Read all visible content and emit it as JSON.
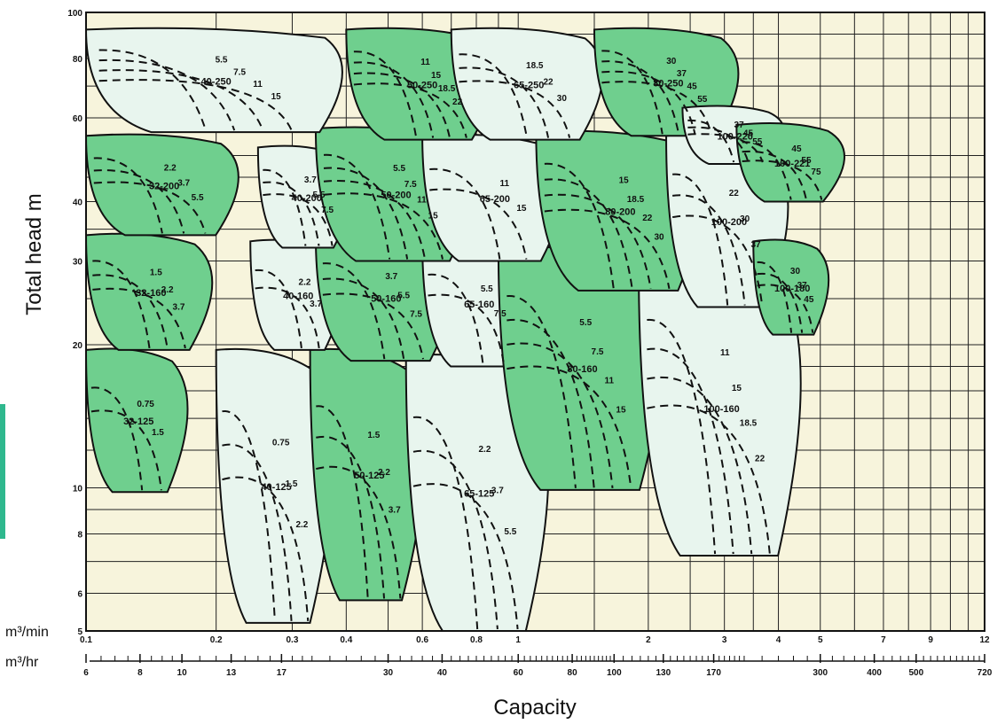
{
  "accent_colors": {
    "light_zone": "#e8f5ee",
    "dark_zone": "#6fcf8e",
    "plot_bg": "#f7f4dc",
    "side_bar": "#2fb88e"
  },
  "chart_data": {
    "type": "area",
    "xlabel": "Capacity",
    "ylabel": "Total head m",
    "x_scale": "log",
    "y_scale": "log",
    "xlim_m3min": [
      0.1,
      12
    ],
    "ylim_m": [
      5,
      100
    ],
    "grid": true,
    "y_ticks": [
      "5",
      "6",
      "8",
      "10",
      "20",
      "30",
      "40",
      "60",
      "80",
      "100"
    ],
    "x_ticks_m3min": [
      "0.1",
      "0.2",
      "0.3",
      "0.4",
      "0.6",
      "0.8",
      "1",
      "2",
      "3",
      "4",
      "5",
      "7",
      "9",
      "12"
    ],
    "x_ticks_m3hr": [
      "6",
      "8",
      "10",
      "13",
      "17",
      "30",
      "40",
      "60",
      "80",
      "100",
      "130",
      "170",
      "300",
      "400",
      "500",
      "720"
    ],
    "x_unit_min": "m³/min",
    "x_unit_hr": "m³/hr",
    "zones": [
      {
        "model": "32-125",
        "fill": "dark",
        "q": [
          0.1,
          0.175
        ],
        "h": [
          9.8,
          19.5
        ],
        "motors_kw": [
          "0.75",
          "1.5"
        ]
      },
      {
        "model": "40-125",
        "fill": "light",
        "q": [
          0.2,
          0.38
        ],
        "h": [
          5.2,
          19.5
        ],
        "motors_kw": [
          "0.75",
          "1.5",
          "2.2"
        ]
      },
      {
        "model": "50-125",
        "fill": "dark",
        "q": [
          0.33,
          0.62
        ],
        "h": [
          5.8,
          19.5
        ],
        "motors_kw": [
          "1.5",
          "2.2",
          "3.7"
        ]
      },
      {
        "model": "65-125",
        "fill": "light",
        "q": [
          0.55,
          1.2
        ],
        "h": [
          5,
          19
        ],
        "motors_kw": [
          "2.2",
          "3.7",
          "5.5"
        ]
      },
      {
        "model": "32-160",
        "fill": "dark",
        "q": [
          0.1,
          0.2
        ],
        "h": [
          19.5,
          34
        ],
        "motors_kw": [
          "1.5",
          "2.2",
          "3.7"
        ]
      },
      {
        "model": "40-160",
        "fill": "light",
        "q": [
          0.24,
          0.4
        ],
        "h": [
          19.5,
          33
        ],
        "motors_kw": [
          "2.2",
          "3.7"
        ]
      },
      {
        "model": "50-160",
        "fill": "dark",
        "q": [
          0.34,
          0.72
        ],
        "h": [
          18.5,
          34
        ],
        "motors_kw": [
          "3.7",
          "5.5",
          "7.5"
        ]
      },
      {
        "model": "65-160",
        "fill": "light",
        "q": [
          0.6,
          1.1
        ],
        "h": [
          18,
          33
        ],
        "motors_kw": [
          "5.5",
          "7.5"
        ]
      },
      {
        "model": "80-160",
        "fill": "dark",
        "q": [
          0.9,
          2.2
        ],
        "h": [
          9.9,
          32
        ],
        "motors_kw": [
          "5.5",
          "7.5",
          "11",
          "15"
        ]
      },
      {
        "model": "100-160",
        "fill": "light",
        "q": [
          1.9,
          4.6
        ],
        "h": [
          7.2,
          30
        ],
        "motors_kw": [
          "11",
          "15",
          "18.5",
          "22"
        ]
      },
      {
        "model": "32-200",
        "fill": "dark",
        "q": [
          0.1,
          0.23
        ],
        "h": [
          34,
          55
        ],
        "motors_kw": [
          "2.2",
          "3.7",
          "5.5"
        ]
      },
      {
        "model": "40-200",
        "fill": "light",
        "q": [
          0.25,
          0.42
        ],
        "h": [
          32,
          52
        ],
        "motors_kw": [
          "3.7",
          "5.5",
          "7.5"
        ]
      },
      {
        "model": "50-200",
        "fill": "dark",
        "q": [
          0.34,
          0.8
        ],
        "h": [
          30,
          57
        ],
        "motors_kw": [
          "5.5",
          "7.5",
          "11",
          "15"
        ]
      },
      {
        "model": "65-200",
        "fill": "light",
        "q": [
          0.6,
          1.3
        ],
        "h": [
          30,
          55
        ],
        "motors_kw": [
          "11",
          "15"
        ]
      },
      {
        "model": "80-200",
        "fill": "dark",
        "q": [
          1.1,
          2.7
        ],
        "h": [
          26,
          56
        ],
        "motors_kw": [
          "15",
          "18.5",
          "22",
          "30"
        ]
      },
      {
        "model": "100-200",
        "fill": "light",
        "q": [
          2.2,
          4.3
        ],
        "h": [
          24,
          55
        ],
        "motors_kw": [
          "22",
          "30",
          "37"
        ]
      },
      {
        "model": "100-180",
        "fill": "dark",
        "q": [
          3.5,
          5.3
        ],
        "h": [
          21,
          33
        ],
        "motors_kw": [
          "30",
          "37",
          "45"
        ]
      },
      {
        "model": "40-250",
        "fill": "light",
        "q": [
          0.1,
          0.4
        ],
        "h": [
          56,
          92
        ],
        "motors_kw": [
          "5.5",
          "7.5",
          "11",
          "15"
        ]
      },
      {
        "model": "50-250",
        "fill": "dark",
        "q": [
          0.4,
          0.9
        ],
        "h": [
          54,
          92
        ],
        "motors_kw": [
          "11",
          "15",
          "18.5",
          "22"
        ]
      },
      {
        "model": "65-250",
        "fill": "light",
        "q": [
          0.7,
          1.6
        ],
        "h": [
          54,
          92
        ],
        "motors_kw": [
          "18.5",
          "22",
          "30"
        ]
      },
      {
        "model": "80-250",
        "fill": "dark",
        "q": [
          1.5,
          3.3
        ],
        "h": [
          55,
          92
        ],
        "motors_kw": [
          "30",
          "37",
          "45",
          "55"
        ]
      },
      {
        "model": "100-220",
        "fill": "light",
        "q": [
          2.4,
          4.2
        ],
        "h": [
          48,
          63
        ],
        "motors_kw": [
          "37",
          "45",
          "55"
        ]
      },
      {
        "model": "100-221",
        "fill": "dark",
        "q": [
          3.2,
          5.8
        ],
        "h": [
          40,
          58
        ],
        "motors_kw": [
          "45",
          "55",
          "75"
        ]
      }
    ]
  }
}
